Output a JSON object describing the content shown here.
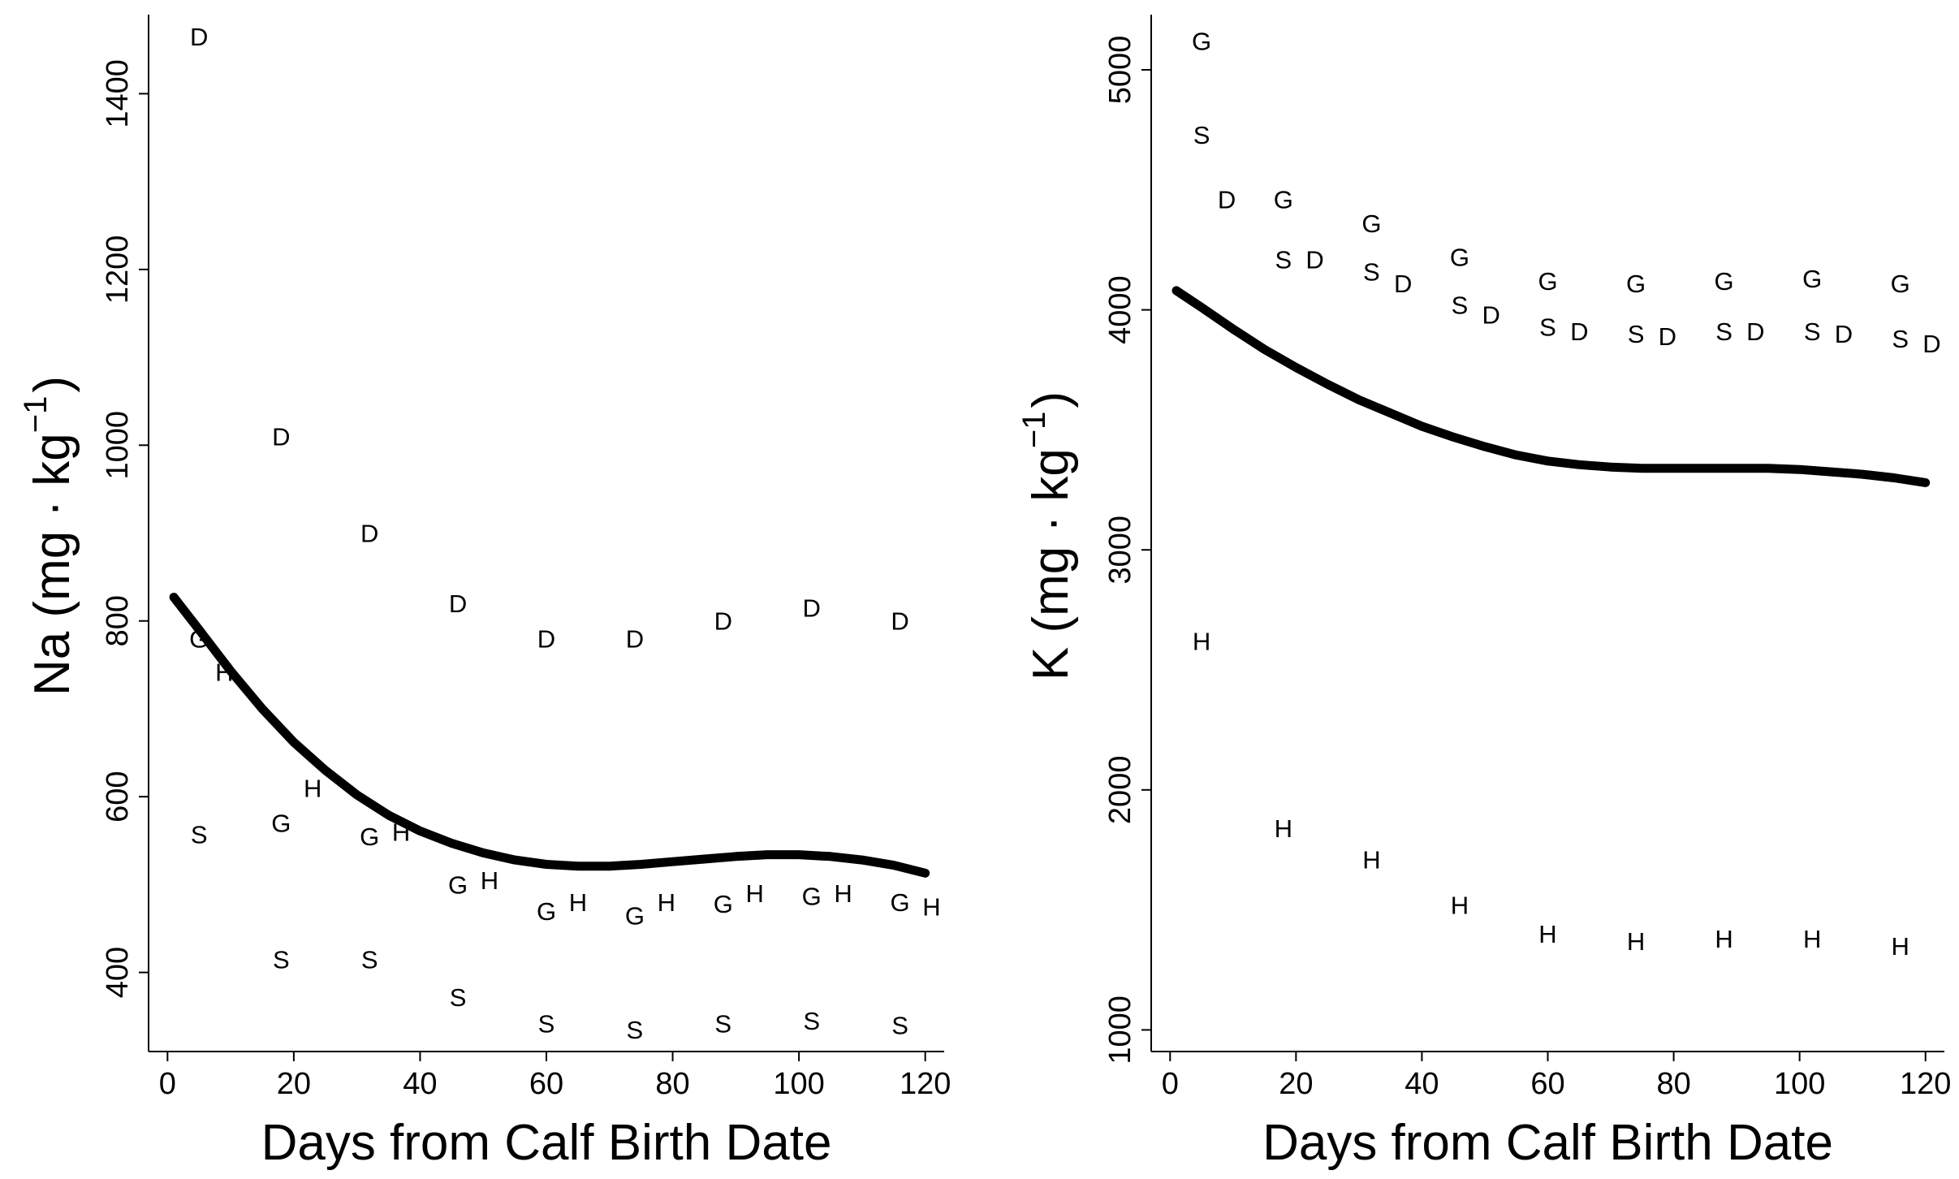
{
  "chart_data": [
    {
      "type": "scatter",
      "panel": "left",
      "title": "",
      "xlabel": "Days from Calf Birth Date",
      "ylabel_main": "Na (mg · kg",
      "ylabel_sup": "−1",
      "ylabel_close": ")",
      "xlim": [
        -3,
        123
      ],
      "ylim": [
        310,
        1490
      ],
      "xticks": [
        0,
        20,
        40,
        60,
        80,
        100,
        120
      ],
      "yticks": [
        400,
        600,
        800,
        1000,
        1200,
        1400
      ],
      "x_tick_labels": [
        "0",
        "20",
        "40",
        "60",
        "80",
        "100",
        "120"
      ],
      "y_tick_labels": [
        "400",
        "600",
        "800",
        "1000",
        "1200",
        "1400"
      ],
      "series": [
        {
          "name": "D",
          "x": [
            5,
            18,
            32,
            46,
            60,
            74,
            88,
            102,
            116
          ],
          "y": [
            1465,
            1010,
            900,
            820,
            780,
            780,
            800,
            815,
            800
          ]
        },
        {
          "name": "G",
          "x": [
            5,
            18,
            32,
            46,
            60,
            74,
            88,
            102,
            116
          ],
          "y": [
            780,
            570,
            555,
            500,
            470,
            465,
            478,
            487,
            480
          ]
        },
        {
          "name": "H",
          "x": [
            9,
            23,
            37,
            51,
            65,
            79,
            93,
            107,
            121
          ],
          "y": [
            742,
            610,
            560,
            505,
            480,
            480,
            490,
            490,
            475
          ]
        },
        {
          "name": "S",
          "x": [
            5,
            18,
            32,
            46,
            60,
            74,
            88,
            102,
            116
          ],
          "y": [
            557,
            415,
            415,
            372,
            342,
            335,
            342,
            345,
            340
          ]
        }
      ],
      "fit_line": {
        "x": [
          1,
          5,
          10,
          15,
          20,
          25,
          30,
          35,
          40,
          45,
          50,
          55,
          60,
          65,
          70,
          75,
          80,
          85,
          90,
          95,
          100,
          105,
          110,
          115,
          120
        ],
        "y": [
          827,
          790,
          743,
          700,
          662,
          630,
          602,
          579,
          561,
          547,
          536,
          528,
          523,
          521,
          521,
          523,
          526,
          529,
          532,
          534,
          534,
          532,
          528,
          522,
          513
        ]
      }
    },
    {
      "type": "scatter",
      "panel": "right",
      "title": "",
      "xlabel": "Days from Calf Birth Date",
      "ylabel_main": "K (mg · kg",
      "ylabel_sup": "−1",
      "ylabel_close": ")",
      "xlim": [
        -3,
        123
      ],
      "ylim": [
        910,
        5230
      ],
      "xticks": [
        0,
        20,
        40,
        60,
        80,
        100,
        120
      ],
      "yticks": [
        1000,
        2000,
        3000,
        4000,
        5000
      ],
      "x_tick_labels": [
        "0",
        "20",
        "40",
        "60",
        "80",
        "100",
        "120"
      ],
      "y_tick_labels": [
        "1000",
        "2000",
        "3000",
        "4000",
        "5000"
      ],
      "series": [
        {
          "name": "G",
          "x": [
            5,
            18,
            32,
            46,
            60,
            74,
            88,
            102,
            116
          ],
          "y": [
            5120,
            4460,
            4360,
            4220,
            4120,
            4110,
            4120,
            4130,
            4110
          ]
        },
        {
          "name": "S",
          "x": [
            5,
            18,
            32,
            46,
            60,
            74,
            88,
            102,
            116
          ],
          "y": [
            4730,
            4210,
            4160,
            4020,
            3930,
            3900,
            3910,
            3910,
            3880
          ]
        },
        {
          "name": "D",
          "x": [
            9,
            23,
            37,
            51,
            65,
            79,
            93,
            107,
            121
          ],
          "y": [
            4460,
            4210,
            4110,
            3980,
            3910,
            3890,
            3910,
            3900,
            3860
          ]
        },
        {
          "name": "H",
          "x": [
            5,
            18,
            32,
            46,
            60,
            74,
            88,
            102,
            116
          ],
          "y": [
            2620,
            1840,
            1710,
            1520,
            1400,
            1370,
            1380,
            1380,
            1350
          ]
        }
      ],
      "fit_line": {
        "x": [
          1,
          5,
          10,
          15,
          20,
          25,
          30,
          35,
          40,
          45,
          50,
          55,
          60,
          65,
          70,
          75,
          80,
          85,
          90,
          95,
          100,
          105,
          110,
          115,
          120
        ],
        "y": [
          4080,
          4010,
          3920,
          3835,
          3760,
          3690,
          3625,
          3570,
          3515,
          3470,
          3430,
          3395,
          3370,
          3355,
          3345,
          3340,
          3340,
          3340,
          3340,
          3340,
          3335,
          3325,
          3315,
          3300,
          3280
        ]
      }
    }
  ]
}
